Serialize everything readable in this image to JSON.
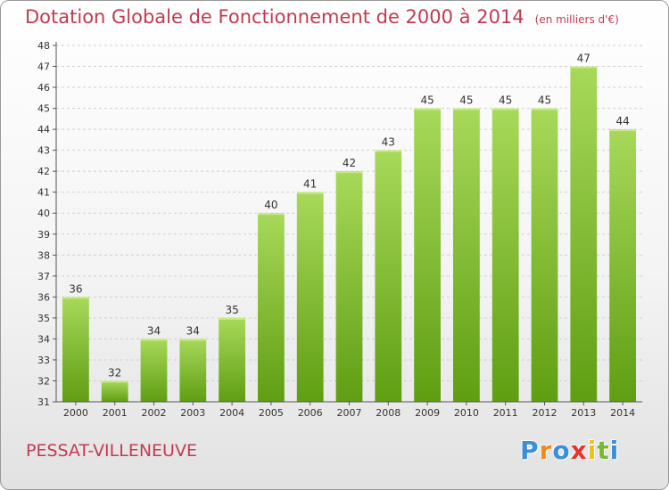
{
  "header": {
    "title": "Dotation Globale de Fonctionnement de 2000 à 2014",
    "unit": "(en milliers d'€)"
  },
  "footer": {
    "commune": "PESSAT-VILLENEUVE",
    "brand": "Proxiti",
    "brand_letters": [
      {
        "ch": "P",
        "color": "#3a8fd6"
      },
      {
        "ch": "r",
        "color": "#f08a1e"
      },
      {
        "ch": "o",
        "color": "#3a8fd6"
      },
      {
        "ch": "x",
        "color": "#e8352b"
      },
      {
        "ch": "i",
        "color": "#f0c01e"
      },
      {
        "ch": "t",
        "color": "#7ab82e"
      },
      {
        "ch": "i",
        "color": "#3a8fd6"
      }
    ]
  },
  "chart_data": {
    "type": "bar",
    "categories": [
      "2000",
      "2001",
      "2002",
      "2003",
      "2004",
      "2005",
      "2006",
      "2007",
      "2008",
      "2009",
      "2010",
      "2011",
      "2012",
      "2013",
      "2014"
    ],
    "values": [
      36,
      32,
      34,
      34,
      35,
      40,
      41,
      42,
      43,
      45,
      45,
      45,
      45,
      47,
      44
    ],
    "ylim": [
      31,
      48
    ],
    "yticks": [
      31,
      32,
      33,
      34,
      35,
      36,
      37,
      38,
      39,
      40,
      41,
      42,
      43,
      44,
      45,
      46,
      47,
      48
    ],
    "grid": true,
    "data_labels": true,
    "colors": {
      "bar_top": "#a8d95a",
      "bar_bottom": "#5f9e12",
      "grid": "#cfcfcf",
      "axis": "#555555",
      "text": "#333333",
      "title": "#c23a50"
    }
  }
}
